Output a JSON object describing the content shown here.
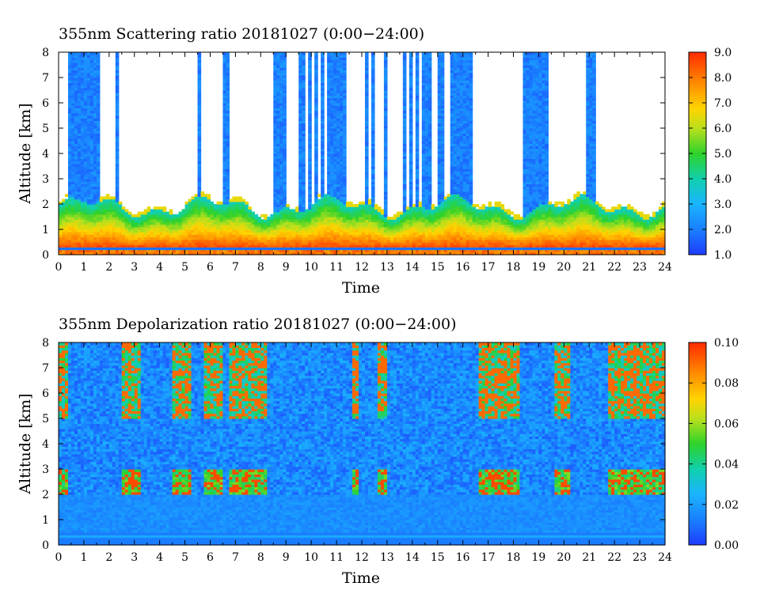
{
  "chart_data": [
    {
      "type": "heatmap",
      "title": "355nm Scattering ratio  20181027 (0:00−24:00)",
      "xlabel": "Time",
      "ylabel": "Altitude [km]",
      "xlim": [
        0,
        24
      ],
      "ylim": [
        0,
        8
      ],
      "x_ticks": [
        "0",
        "1",
        "2",
        "3",
        "4",
        "5",
        "6",
        "7",
        "8",
        "9",
        "10",
        "11",
        "12",
        "13",
        "14",
        "15",
        "16",
        "17",
        "18",
        "19",
        "20",
        "21",
        "22",
        "23",
        "24"
      ],
      "y_ticks": [
        "0",
        "1",
        "2",
        "3",
        "4",
        "5",
        "6",
        "7",
        "8"
      ],
      "colorbar": {
        "range": [
          1.0,
          9.0
        ],
        "ticks": [
          "1.0",
          "2.0",
          "3.0",
          "4.0",
          "5.0",
          "6.0",
          "7.0",
          "8.0",
          "9.0"
        ]
      },
      "cloud_columns": [
        [
          0.4,
          1.6
        ],
        [
          2.3,
          2.4
        ],
        [
          5.5,
          5.6
        ],
        [
          6.5,
          6.7
        ],
        [
          8.5,
          9.0
        ],
        [
          9.2,
          9.3
        ],
        [
          9.5,
          9.8
        ],
        [
          9.9,
          10.0
        ],
        [
          10.1,
          10.3
        ],
        [
          10.4,
          10.5
        ],
        [
          10.6,
          11.4
        ],
        [
          12.1,
          12.3
        ],
        [
          12.4,
          12.5
        ],
        [
          12.9,
          13.0
        ],
        [
          13.6,
          13.8
        ],
        [
          13.9,
          14.0
        ],
        [
          14.1,
          14.3
        ],
        [
          14.4,
          14.8
        ],
        [
          15.0,
          15.3
        ],
        [
          15.5,
          15.8
        ],
        [
          15.8,
          16.4
        ],
        [
          18.4,
          19.4
        ],
        [
          20.2,
          20.3
        ],
        [
          20.9,
          21.3
        ]
      ],
      "boundary_layer_top_km": 2.0,
      "grid": false,
      "colorbar_placement": "right"
    },
    {
      "type": "heatmap",
      "title": "355nm Depolarization ratio  20181027 (0:00−24:00)",
      "xlabel": "Time",
      "ylabel": "Altitude [km]",
      "xlim": [
        0,
        24
      ],
      "ylim": [
        0,
        8
      ],
      "x_ticks": [
        "0",
        "1",
        "2",
        "3",
        "4",
        "5",
        "6",
        "7",
        "8",
        "9",
        "10",
        "11",
        "12",
        "13",
        "14",
        "15",
        "16",
        "17",
        "18",
        "19",
        "20",
        "21",
        "22",
        "23",
        "24"
      ],
      "y_ticks": [
        "0",
        "1",
        "2",
        "3",
        "4",
        "5",
        "6",
        "7",
        "8"
      ],
      "colorbar": {
        "range": [
          0.0,
          0.1
        ],
        "ticks": [
          "0.00",
          "0.02",
          "0.04",
          "0.06",
          "0.08",
          "0.10"
        ]
      },
      "high_depol_regions": [
        [
          0.0,
          0.4
        ],
        [
          2.5,
          3.2
        ],
        [
          4.5,
          5.2
        ],
        [
          5.8,
          6.5
        ],
        [
          6.8,
          8.2
        ],
        [
          11.6,
          11.9
        ],
        [
          12.6,
          13.0
        ],
        [
          16.6,
          18.2
        ],
        [
          19.6,
          20.2
        ],
        [
          21.8,
          24.0
        ]
      ],
      "grid": false,
      "colorbar_placement": "right"
    }
  ]
}
